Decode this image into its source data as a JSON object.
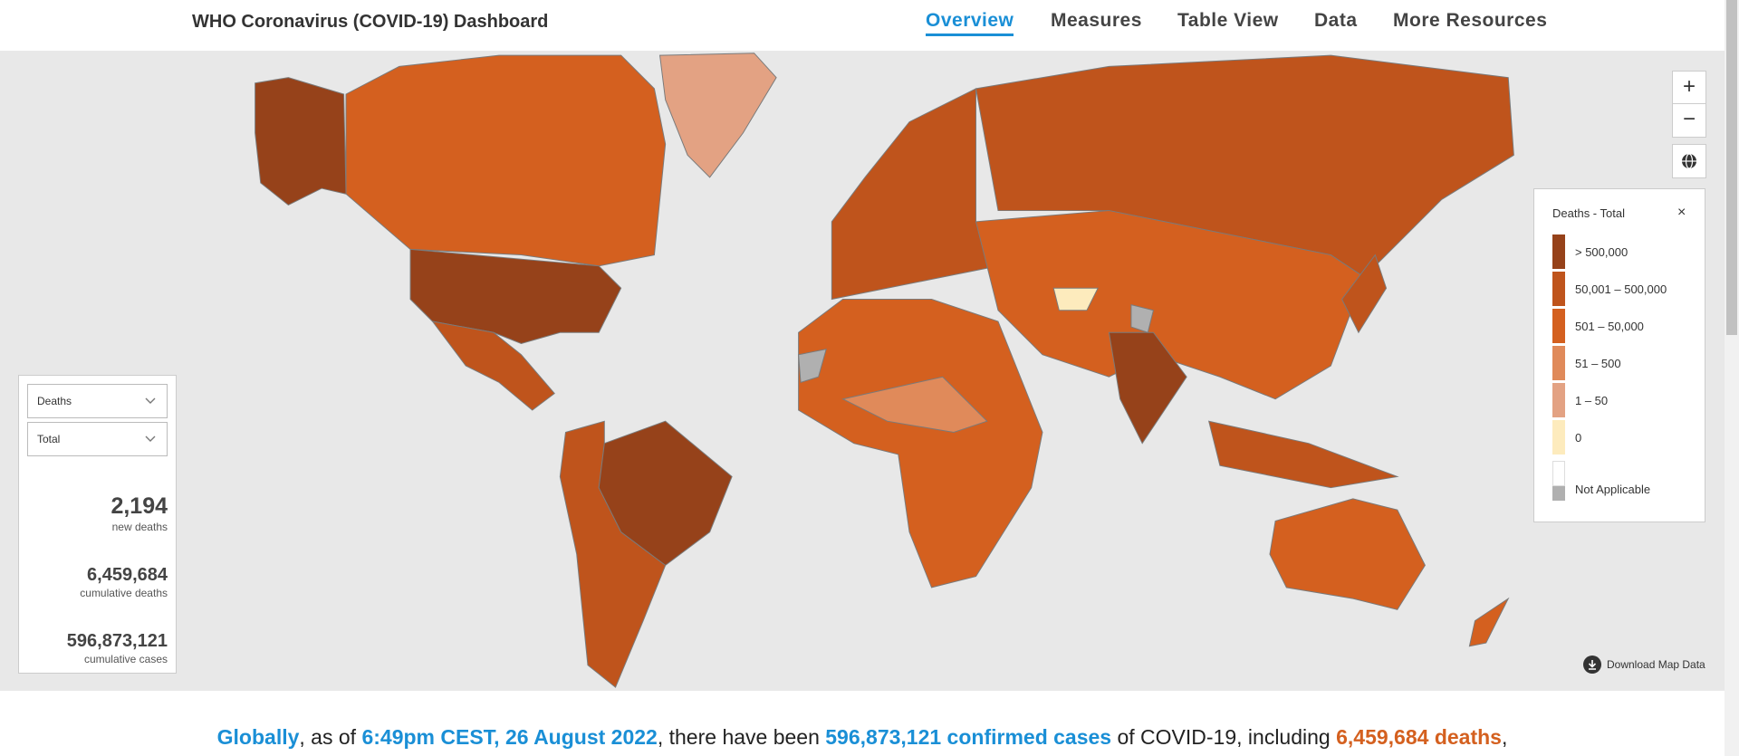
{
  "header": {
    "title": "WHO Coronavirus (COVID-19) Dashboard",
    "nav": [
      "Overview",
      "Measures",
      "Table View",
      "Data",
      "More Resources"
    ],
    "active": 0
  },
  "map": {
    "zoom_in": "+",
    "zoom_out": "−",
    "legend": {
      "title": "Deaths - Total",
      "close": "×",
      "items": [
        {
          "label": "> 500,000",
          "color": "#96421a"
        },
        {
          "label": "50,001 – 500,000",
          "color": "#bf541c"
        },
        {
          "label": "501 – 50,000",
          "color": "#d4601f"
        },
        {
          "label": "51 – 500",
          "color": "#e08a5a"
        },
        {
          "label": "1 – 50",
          "color": "#e3a283"
        },
        {
          "label": "0",
          "color": "#fdebbd"
        },
        {
          "label": "Not Applicable",
          "color": "#b0b0b0"
        }
      ]
    },
    "download": "Download Map Data"
  },
  "panel": {
    "selects": [
      "Deaths",
      "Total"
    ],
    "stats": [
      {
        "value": "2,194",
        "label": "new deaths"
      },
      {
        "value": "6,459,684",
        "label": "cumulative deaths"
      },
      {
        "value": "596,873,121",
        "label": "cumulative cases"
      }
    ]
  },
  "summary": {
    "parts": [
      "Globally",
      ", as of ",
      "6:49pm CEST, 26 August 2022",
      ", there have been ",
      "596,873,121 confirmed cases",
      " of COVID-19, including ",
      "6,459,684 deaths",
      ","
    ]
  }
}
